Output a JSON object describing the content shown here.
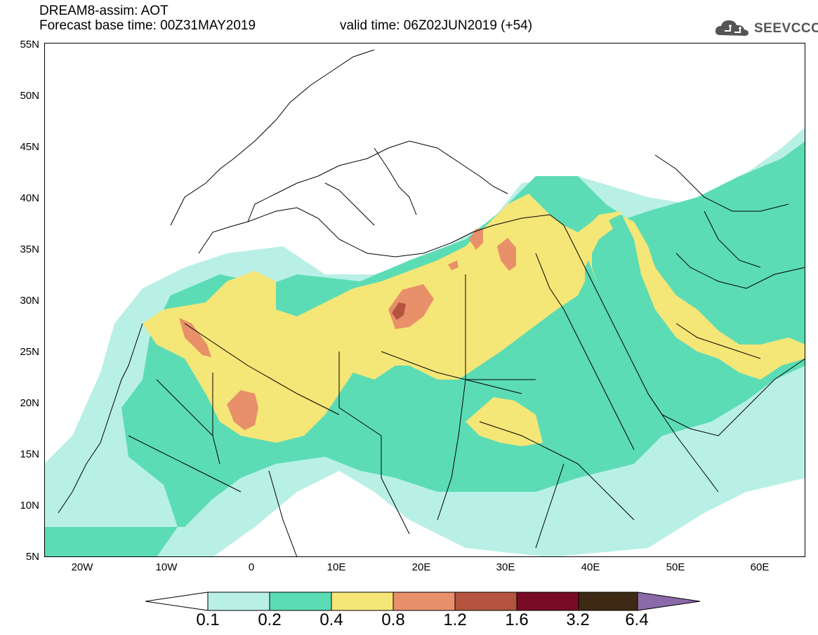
{
  "header": {
    "title_line1": "DREAM8-assim: AOT",
    "title_line2": "Forecast base time: 00Z31MAY2019",
    "valid_time": "valid time: 06Z02JUN2019 (+54)",
    "logo_text": "SEEVCCC"
  },
  "map": {
    "lat_labels": [
      "55N",
      "50N",
      "45N",
      "40N",
      "35N",
      "30N",
      "25N",
      "20N",
      "15N",
      "10N",
      "5N"
    ],
    "lon_labels": [
      "20W",
      "10W",
      "0",
      "10E",
      "20E",
      "30E",
      "40E",
      "50E",
      "60E"
    ],
    "extent": {
      "lon": [
        -25,
        65
      ],
      "lat": [
        5,
        55
      ]
    }
  },
  "colorbar": {
    "labels": [
      "0.1",
      "0.2",
      "0.4",
      "0.8",
      "1.2",
      "1.6",
      "3.2",
      "6.4"
    ],
    "colors": [
      "#ffffff",
      "#b9f0e6",
      "#5cdcb4",
      "#f5e678",
      "#e8906a",
      "#b4543f",
      "#7a0b26",
      "#3e2a14",
      "#8a6aa8"
    ]
  },
  "colors": {
    "c02": "#b9f0e6",
    "c04": "#5cdcb4",
    "c08": "#f5e678",
    "c12": "#e8906a",
    "c16": "#b4543f",
    "c32": "#7a0b26"
  }
}
